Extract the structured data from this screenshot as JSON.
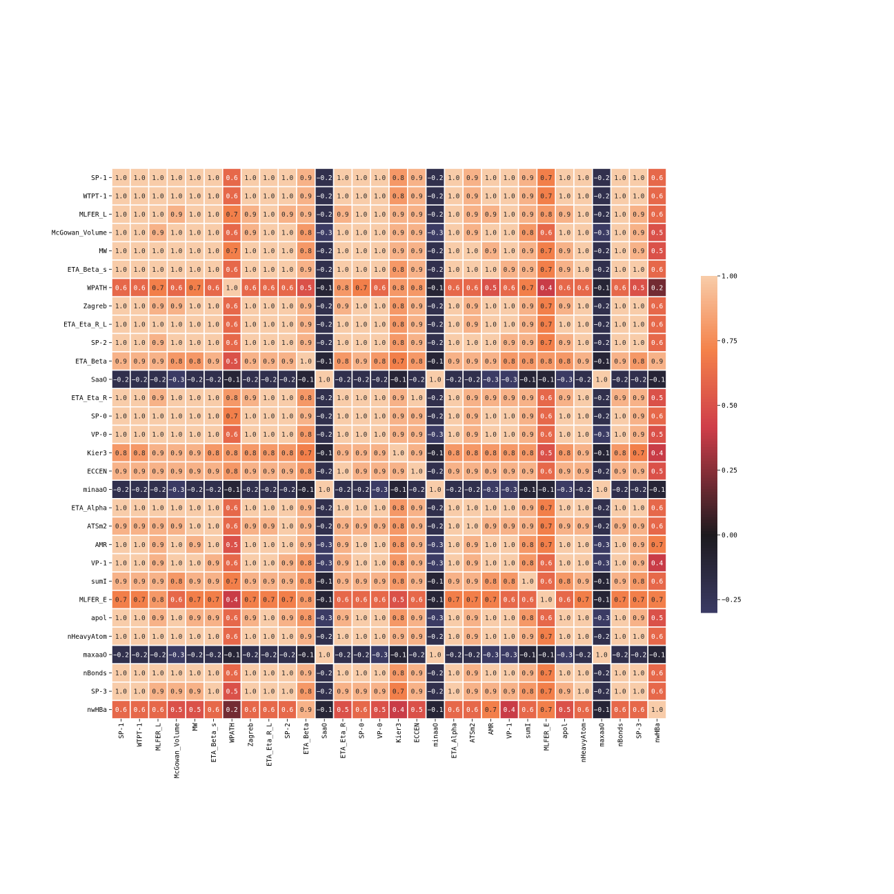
{
  "chart_data": {
    "type": "heatmap",
    "labels": [
      "SP-1",
      "WTPT-1",
      "MLFER_L",
      "McGowan_Volume",
      "MW",
      "ETA_Beta_s",
      "WPATH",
      "Zagreb",
      "ETA_Eta_R_L",
      "SP-2",
      "ETA_Beta",
      "SaaO",
      "ETA_Eta_R",
      "SP-0",
      "VP-0",
      "Kier3",
      "ECCEN",
      "minaaO",
      "ETA_Alpha",
      "ATSm2",
      "AMR",
      "VP-1",
      "sumI",
      "MLFER_E",
      "apol",
      "nHeavyAtom",
      "maxaaO",
      "nBonds",
      "SP-3",
      "nwHBa"
    ],
    "values": [
      [
        1.0,
        1.0,
        1.0,
        1.0,
        1.0,
        1.0,
        0.6,
        1.0,
        1.0,
        1.0,
        0.9,
        -0.2,
        1.0,
        1.0,
        1.0,
        0.8,
        0.9,
        -0.2,
        1.0,
        0.9,
        1.0,
        1.0,
        0.9,
        0.7,
        1.0,
        1.0,
        -0.2,
        1.0,
        1.0,
        0.6
      ],
      [
        1.0,
        1.0,
        1.0,
        1.0,
        1.0,
        1.0,
        0.6,
        1.0,
        1.0,
        1.0,
        0.9,
        -0.2,
        1.0,
        1.0,
        1.0,
        0.8,
        0.9,
        -0.2,
        1.0,
        0.9,
        1.0,
        1.0,
        0.9,
        0.7,
        1.0,
        1.0,
        -0.2,
        1.0,
        1.0,
        0.6
      ],
      [
        1.0,
        1.0,
        1.0,
        0.9,
        1.0,
        1.0,
        0.7,
        0.9,
        1.0,
        0.9,
        0.9,
        -0.2,
        0.9,
        1.0,
        1.0,
        0.9,
        0.9,
        -0.2,
        1.0,
        0.9,
        0.9,
        1.0,
        0.9,
        0.8,
        0.9,
        1.0,
        -0.2,
        1.0,
        0.9,
        0.6
      ],
      [
        1.0,
        1.0,
        0.9,
        1.0,
        1.0,
        1.0,
        0.6,
        0.9,
        1.0,
        1.0,
        0.8,
        -0.3,
        1.0,
        1.0,
        1.0,
        0.9,
        0.9,
        -0.3,
        1.0,
        0.9,
        1.0,
        1.0,
        0.8,
        0.6,
        1.0,
        1.0,
        -0.3,
        1.0,
        0.9,
        0.5
      ],
      [
        1.0,
        1.0,
        1.0,
        1.0,
        1.0,
        1.0,
        0.7,
        1.0,
        1.0,
        1.0,
        0.8,
        -0.2,
        1.0,
        1.0,
        1.0,
        0.9,
        0.9,
        -0.2,
        1.0,
        1.0,
        0.9,
        1.0,
        0.9,
        0.7,
        0.9,
        1.0,
        -0.2,
        1.0,
        0.9,
        0.5
      ],
      [
        1.0,
        1.0,
        1.0,
        1.0,
        1.0,
        1.0,
        0.6,
        1.0,
        1.0,
        1.0,
        0.9,
        -0.2,
        1.0,
        1.0,
        1.0,
        0.8,
        0.9,
        -0.2,
        1.0,
        1.0,
        1.0,
        0.9,
        0.9,
        0.7,
        0.9,
        1.0,
        -0.2,
        1.0,
        1.0,
        0.6
      ],
      [
        0.6,
        0.6,
        0.7,
        0.6,
        0.7,
        0.6,
        1.0,
        0.6,
        0.6,
        0.6,
        0.5,
        -0.1,
        0.8,
        0.7,
        0.6,
        0.8,
        0.8,
        -0.1,
        0.6,
        0.6,
        0.5,
        0.6,
        0.7,
        0.4,
        0.6,
        0.6,
        -0.1,
        0.6,
        0.5,
        0.2
      ],
      [
        1.0,
        1.0,
        0.9,
        0.9,
        1.0,
        1.0,
        0.6,
        1.0,
        1.0,
        1.0,
        0.9,
        -0.2,
        0.9,
        1.0,
        1.0,
        0.8,
        0.9,
        -0.2,
        1.0,
        0.9,
        1.0,
        1.0,
        0.9,
        0.7,
        0.9,
        1.0,
        -0.2,
        1.0,
        1.0,
        0.6
      ],
      [
        1.0,
        1.0,
        1.0,
        1.0,
        1.0,
        1.0,
        0.6,
        1.0,
        1.0,
        1.0,
        0.9,
        -0.2,
        1.0,
        1.0,
        1.0,
        0.8,
        0.9,
        -0.2,
        1.0,
        0.9,
        1.0,
        1.0,
        0.9,
        0.7,
        1.0,
        1.0,
        -0.2,
        1.0,
        1.0,
        0.6
      ],
      [
        1.0,
        1.0,
        0.9,
        1.0,
        1.0,
        1.0,
        0.6,
        1.0,
        1.0,
        1.0,
        0.9,
        -0.2,
        1.0,
        1.0,
        1.0,
        0.8,
        0.9,
        -0.2,
        1.0,
        1.0,
        1.0,
        0.9,
        0.9,
        0.7,
        0.9,
        1.0,
        -0.2,
        1.0,
        1.0,
        0.6
      ],
      [
        0.9,
        0.9,
        0.9,
        0.8,
        0.8,
        0.9,
        0.5,
        0.9,
        0.9,
        0.9,
        1.0,
        -0.1,
        0.8,
        0.9,
        0.8,
        0.7,
        0.8,
        -0.1,
        0.9,
        0.9,
        0.9,
        0.8,
        0.8,
        0.8,
        0.8,
        0.9,
        -0.1,
        0.9,
        0.8,
        0.9
      ],
      [
        -0.2,
        -0.2,
        -0.2,
        -0.3,
        -0.2,
        -0.2,
        -0.1,
        -0.2,
        -0.2,
        -0.2,
        -0.1,
        1.0,
        -0.2,
        -0.2,
        -0.2,
        -0.1,
        -0.2,
        1.0,
        -0.2,
        -0.2,
        -0.3,
        -0.3,
        -0.1,
        -0.1,
        -0.3,
        -0.2,
        1.0,
        -0.2,
        -0.2,
        -0.1
      ],
      [
        1.0,
        1.0,
        0.9,
        1.0,
        1.0,
        1.0,
        0.8,
        0.9,
        1.0,
        1.0,
        0.8,
        -0.2,
        1.0,
        1.0,
        1.0,
        0.9,
        1.0,
        -0.2,
        1.0,
        0.9,
        0.9,
        0.9,
        0.9,
        0.6,
        0.9,
        1.0,
        -0.2,
        0.9,
        0.9,
        0.5
      ],
      [
        1.0,
        1.0,
        1.0,
        1.0,
        1.0,
        1.0,
        0.7,
        1.0,
        1.0,
        1.0,
        0.9,
        -0.2,
        1.0,
        1.0,
        1.0,
        0.9,
        0.9,
        -0.2,
        1.0,
        0.9,
        1.0,
        1.0,
        0.9,
        0.6,
        1.0,
        1.0,
        -0.2,
        1.0,
        0.9,
        0.6
      ],
      [
        1.0,
        1.0,
        1.0,
        1.0,
        1.0,
        1.0,
        0.6,
        1.0,
        1.0,
        1.0,
        0.8,
        -0.2,
        1.0,
        1.0,
        1.0,
        0.9,
        0.9,
        -0.3,
        1.0,
        0.9,
        1.0,
        1.0,
        0.9,
        0.6,
        1.0,
        1.0,
        -0.3,
        1.0,
        0.9,
        0.5
      ],
      [
        0.8,
        0.8,
        0.9,
        0.9,
        0.9,
        0.8,
        0.8,
        0.8,
        0.8,
        0.8,
        0.7,
        -0.1,
        0.9,
        0.9,
        0.9,
        1.0,
        0.9,
        -0.1,
        0.8,
        0.8,
        0.8,
        0.8,
        0.8,
        0.5,
        0.8,
        0.9,
        -0.1,
        0.8,
        0.7,
        0.4
      ],
      [
        0.9,
        0.9,
        0.9,
        0.9,
        0.9,
        0.9,
        0.8,
        0.9,
        0.9,
        0.9,
        0.8,
        -0.2,
        1.0,
        0.9,
        0.9,
        0.9,
        1.0,
        -0.2,
        0.9,
        0.9,
        0.9,
        0.9,
        0.9,
        0.6,
        0.9,
        0.9,
        -0.2,
        0.9,
        0.9,
        0.5
      ],
      [
        -0.2,
        -0.2,
        -0.2,
        -0.3,
        -0.2,
        -0.2,
        -0.1,
        -0.2,
        -0.2,
        -0.2,
        -0.1,
        1.0,
        -0.2,
        -0.2,
        -0.3,
        -0.1,
        -0.2,
        1.0,
        -0.2,
        -0.2,
        -0.3,
        -0.3,
        -0.1,
        -0.1,
        -0.3,
        -0.2,
        1.0,
        -0.2,
        -0.2,
        -0.1
      ],
      [
        1.0,
        1.0,
        1.0,
        1.0,
        1.0,
        1.0,
        0.6,
        1.0,
        1.0,
        1.0,
        0.9,
        -0.2,
        1.0,
        1.0,
        1.0,
        0.8,
        0.9,
        -0.2,
        1.0,
        1.0,
        1.0,
        1.0,
        0.9,
        0.7,
        1.0,
        1.0,
        -0.2,
        1.0,
        1.0,
        0.6
      ],
      [
        0.9,
        0.9,
        0.9,
        0.9,
        1.0,
        1.0,
        0.6,
        0.9,
        0.9,
        1.0,
        0.9,
        -0.2,
        0.9,
        0.9,
        0.9,
        0.8,
        0.9,
        -0.2,
        1.0,
        1.0,
        0.9,
        0.9,
        0.9,
        0.7,
        0.9,
        0.9,
        -0.2,
        0.9,
        0.9,
        0.6
      ],
      [
        1.0,
        1.0,
        0.9,
        1.0,
        0.9,
        1.0,
        0.5,
        1.0,
        1.0,
        1.0,
        0.9,
        -0.3,
        0.9,
        1.0,
        1.0,
        0.8,
        0.9,
        -0.3,
        1.0,
        0.9,
        1.0,
        1.0,
        0.8,
        0.7,
        1.0,
        1.0,
        -0.3,
        1.0,
        0.9,
        0.7
      ],
      [
        1.0,
        1.0,
        0.9,
        1.0,
        1.0,
        0.9,
        0.6,
        1.0,
        1.0,
        0.9,
        0.8,
        -0.3,
        0.9,
        1.0,
        1.0,
        0.8,
        0.9,
        -0.3,
        1.0,
        0.9,
        1.0,
        1.0,
        0.8,
        0.6,
        1.0,
        1.0,
        -0.3,
        1.0,
        0.9,
        0.4
      ],
      [
        0.9,
        0.9,
        0.9,
        0.8,
        0.9,
        0.9,
        0.7,
        0.9,
        0.9,
        0.9,
        0.8,
        -0.1,
        0.9,
        0.9,
        0.9,
        0.8,
        0.9,
        -0.1,
        0.9,
        0.9,
        0.8,
        0.8,
        1.0,
        0.6,
        0.8,
        0.9,
        -0.1,
        0.9,
        0.8,
        0.6
      ],
      [
        0.7,
        0.7,
        0.8,
        0.6,
        0.7,
        0.7,
        0.4,
        0.7,
        0.7,
        0.7,
        0.8,
        -0.1,
        0.6,
        0.6,
        0.6,
        0.5,
        0.6,
        -0.1,
        0.7,
        0.7,
        0.7,
        0.6,
        0.6,
        1.0,
        0.6,
        0.7,
        -0.1,
        0.7,
        0.7,
        0.7
      ],
      [
        1.0,
        1.0,
        0.9,
        1.0,
        0.9,
        0.9,
        0.6,
        0.9,
        1.0,
        0.9,
        0.8,
        -0.3,
        0.9,
        1.0,
        1.0,
        0.8,
        0.9,
        -0.3,
        1.0,
        0.9,
        1.0,
        1.0,
        0.8,
        0.6,
        1.0,
        1.0,
        -0.3,
        1.0,
        0.9,
        0.5
      ],
      [
        1.0,
        1.0,
        1.0,
        1.0,
        1.0,
        1.0,
        0.6,
        1.0,
        1.0,
        1.0,
        0.9,
        -0.2,
        1.0,
        1.0,
        1.0,
        0.9,
        0.9,
        -0.2,
        1.0,
        0.9,
        1.0,
        1.0,
        0.9,
        0.7,
        1.0,
        1.0,
        -0.2,
        1.0,
        1.0,
        0.6
      ],
      [
        -0.2,
        -0.2,
        -0.2,
        -0.3,
        -0.2,
        -0.2,
        -0.1,
        -0.2,
        -0.2,
        -0.2,
        -0.1,
        1.0,
        -0.2,
        -0.2,
        -0.3,
        -0.1,
        -0.2,
        1.0,
        -0.2,
        -0.2,
        -0.3,
        -0.3,
        -0.1,
        -0.1,
        -0.3,
        -0.2,
        1.0,
        -0.2,
        -0.2,
        -0.1
      ],
      [
        1.0,
        1.0,
        1.0,
        1.0,
        1.0,
        1.0,
        0.6,
        1.0,
        1.0,
        1.0,
        0.9,
        -0.2,
        1.0,
        1.0,
        1.0,
        0.8,
        0.9,
        -0.2,
        1.0,
        0.9,
        1.0,
        1.0,
        0.9,
        0.7,
        1.0,
        1.0,
        -0.2,
        1.0,
        1.0,
        0.6
      ],
      [
        1.0,
        1.0,
        0.9,
        0.9,
        0.9,
        1.0,
        0.5,
        1.0,
        1.0,
        1.0,
        0.8,
        -0.2,
        0.9,
        0.9,
        0.9,
        0.7,
        0.9,
        -0.2,
        1.0,
        0.9,
        0.9,
        0.9,
        0.8,
        0.7,
        0.9,
        1.0,
        -0.2,
        1.0,
        1.0,
        0.6
      ],
      [
        0.6,
        0.6,
        0.6,
        0.5,
        0.5,
        0.6,
        0.2,
        0.6,
        0.6,
        0.6,
        0.9,
        -0.1,
        0.5,
        0.6,
        0.5,
        0.4,
        0.5,
        -0.1,
        0.6,
        0.6,
        0.7,
        0.4,
        0.6,
        0.7,
        0.5,
        0.6,
        -0.1,
        0.6,
        0.6,
        1.0
      ]
    ],
    "color_range": [
      -0.3,
      1.0
    ],
    "colorbar_ticks": [
      "1.00",
      "0.75",
      "0.50",
      "0.25",
      "0.00",
      "−0.25"
    ],
    "colorbar_tick_values": [
      1.0,
      0.75,
      0.5,
      0.25,
      0.0,
      -0.25
    ],
    "colormap_stops": [
      "#3b3b64",
      "#1d1a1f",
      "#cf3d49",
      "#f4824a",
      "#f8cca9"
    ],
    "legend": "right",
    "grid": true
  }
}
